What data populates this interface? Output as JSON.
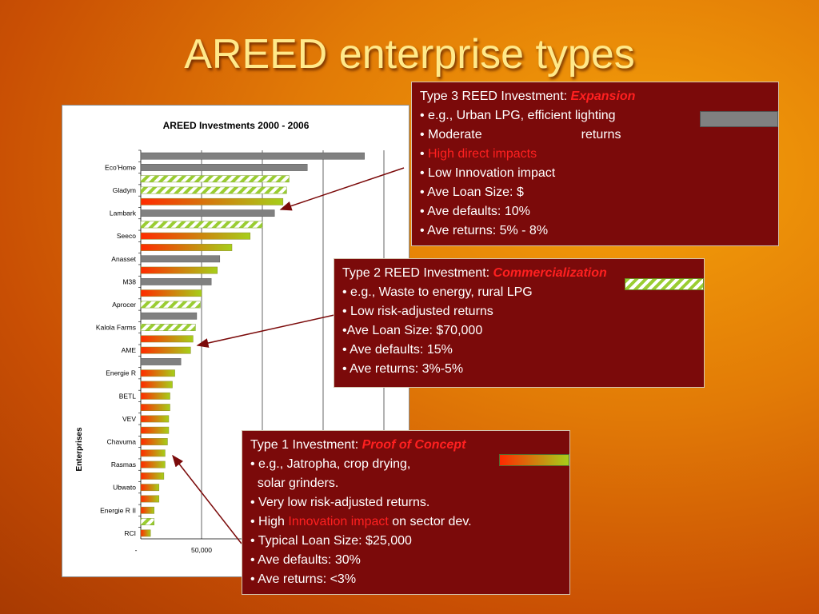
{
  "slide": {
    "title": "AREED enterprise types"
  },
  "chart_data": {
    "type": "bar",
    "orientation": "horizontal",
    "title": "AREED Investments 2000 - 2006",
    "ylabel": "Enterprises",
    "xlabel": "",
    "xlim": [
      0,
      200000
    ],
    "x_tick_labels": [
      "-",
      "50,000"
    ],
    "grid": true,
    "visible_category_labels": [
      "Eco'Home",
      "Gladym",
      "Lambark",
      "Seeco",
      "Anasset",
      "M38",
      "Aprocer",
      "Kalola Farms",
      "AME",
      "Energie R",
      "BETL",
      "VEV",
      "Chavuma",
      "Rasmas",
      "Ubwato",
      "Energie R II",
      "RCI"
    ],
    "bars": [
      {
        "label": "",
        "value": 184000,
        "style": "gray"
      },
      {
        "label": "Eco'Home",
        "value": 137000,
        "style": "gray"
      },
      {
        "label": "",
        "value": 122000,
        "style": "hatched"
      },
      {
        "label": "Gladym",
        "value": 120000,
        "style": "hatched"
      },
      {
        "label": "",
        "value": 117000,
        "style": "gradient"
      },
      {
        "label": "Lambark",
        "value": 110000,
        "style": "gray"
      },
      {
        "label": "",
        "value": 100000,
        "style": "hatched"
      },
      {
        "label": "Seeco",
        "value": 90000,
        "style": "gradient"
      },
      {
        "label": "",
        "value": 75000,
        "style": "gradient"
      },
      {
        "label": "Anasset",
        "value": 65000,
        "style": "gray"
      },
      {
        "label": "",
        "value": 63000,
        "style": "gradient"
      },
      {
        "label": "M38",
        "value": 58000,
        "style": "gray"
      },
      {
        "label": "",
        "value": 50000,
        "style": "gradient"
      },
      {
        "label": "Aprocer",
        "value": 49000,
        "style": "hatched"
      },
      {
        "label": "",
        "value": 46000,
        "style": "gray"
      },
      {
        "label": "Kalola Farms",
        "value": 45000,
        "style": "hatched"
      },
      {
        "label": "",
        "value": 43000,
        "style": "gradient"
      },
      {
        "label": "AME",
        "value": 41000,
        "style": "gradient"
      },
      {
        "label": "",
        "value": 33000,
        "style": "gray"
      },
      {
        "label": "Energie R",
        "value": 28000,
        "style": "gradient"
      },
      {
        "label": "",
        "value": 26000,
        "style": "gradient"
      },
      {
        "label": "BETL",
        "value": 24000,
        "style": "gradient"
      },
      {
        "label": "",
        "value": 24000,
        "style": "gradient"
      },
      {
        "label": "VEV",
        "value": 23000,
        "style": "gradient"
      },
      {
        "label": "",
        "value": 23000,
        "style": "gradient"
      },
      {
        "label": "Chavuma",
        "value": 22000,
        "style": "gradient"
      },
      {
        "label": "",
        "value": 20000,
        "style": "gradient"
      },
      {
        "label": "Rasmas",
        "value": 20000,
        "style": "gradient"
      },
      {
        "label": "",
        "value": 19000,
        "style": "gradient"
      },
      {
        "label": "Ubwato",
        "value": 15000,
        "style": "gradient"
      },
      {
        "label": "",
        "value": 15000,
        "style": "gradient"
      },
      {
        "label": "Energie R II",
        "value": 11000,
        "style": "gradient"
      },
      {
        "label": "",
        "value": 11000,
        "style": "hatched"
      },
      {
        "label": "RCI",
        "value": 8000,
        "style": "gradient"
      }
    ]
  },
  "colors": {
    "box_background": "#7b0a0a",
    "highlight_red": "#ff2020",
    "title_yellow": "#ffe98a",
    "bar_gray": "#808080",
    "bar_green": "#9acd32",
    "bar_red": "#ff2a00"
  },
  "boxes": {
    "type3": {
      "title_prefix": "Type 3 REED Investment: ",
      "title_emphasis": "Expansion",
      "example": "• e.g., Urban LPG, efficient lighting",
      "returns_left": "• Moderate",
      "returns_right": "returns",
      "impact_bullet": "• ",
      "impact": "High direct impacts",
      "innovation": "• Low Innovation impact",
      "loan": "• Ave Loan Size: $",
      "defaults": "• Ave defaults: 10%",
      "ave_returns": "• Ave returns: 5% - 8%",
      "swatch": "gray"
    },
    "type2": {
      "title_prefix": "Type 2 REED Investment: ",
      "title_emphasis": "Commercialization",
      "example": "• e.g., Waste to energy, rural LPG",
      "risk": "• Low risk-adjusted returns",
      "loan": "•Ave Loan Size: $70,000",
      "defaults": "• Ave defaults: 15%",
      "ave_returns": "• Ave returns: 3%-5%",
      "swatch": "hatched"
    },
    "type1": {
      "title_prefix": "Type 1 Investment: ",
      "title_emphasis": "Proof of Concept",
      "example1": "• e.g., Jatropha, crop drying,",
      "example2": "  solar grinders.",
      "risk": "• Very low risk-adjusted returns.",
      "high_prefix": "• High ",
      "high_emphasis": "Innovation impact",
      "high_suffix": " on sector dev.",
      "loan": "• Typical Loan Size: $25,000",
      "defaults": "• Ave defaults: 30%",
      "ave_returns": "• Ave returns: <3%",
      "swatch": "gradient"
    }
  }
}
